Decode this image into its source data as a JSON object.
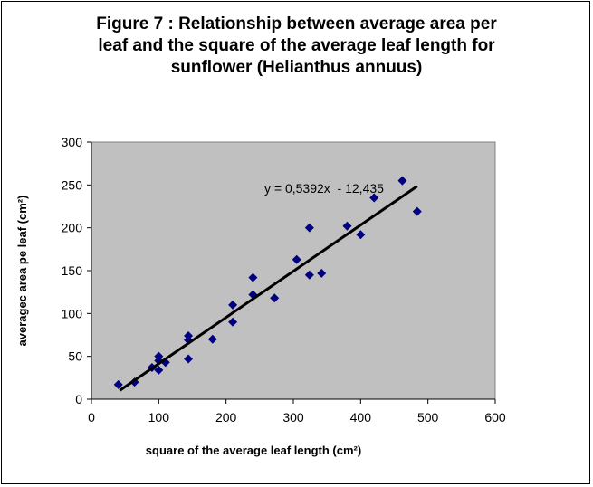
{
  "chart_data": {
    "type": "scatter",
    "title_lines": [
      "Figure 7 : Relationship between average area per",
      "leaf and the square of the average leaf length for",
      "sunflower (Helianthus annuus)"
    ],
    "xlabel": "square of the average leaf length (cm²)",
    "ylabel": "averagec area pe leaf (cm²)",
    "xlim": [
      0,
      600
    ],
    "ylim": [
      0,
      300
    ],
    "xticks": [
      0,
      100,
      200,
      300,
      400,
      500,
      600
    ],
    "yticks": [
      0,
      50,
      100,
      150,
      200,
      250,
      300
    ],
    "grid": false,
    "plot_background": "#c0c0c0",
    "marker_color": "#000080",
    "trendline_color": "#000000",
    "points": [
      [
        40,
        17
      ],
      [
        64,
        20
      ],
      [
        90,
        37
      ],
      [
        100,
        34
      ],
      [
        100,
        50
      ],
      [
        100,
        45
      ],
      [
        110,
        43
      ],
      [
        144,
        74
      ],
      [
        144,
        69
      ],
      [
        144,
        47
      ],
      [
        180,
        70
      ],
      [
        210,
        110
      ],
      [
        210,
        90
      ],
      [
        240,
        142
      ],
      [
        240,
        122
      ],
      [
        272,
        118
      ],
      [
        305,
        163
      ],
      [
        324,
        200
      ],
      [
        324,
        145
      ],
      [
        342,
        147
      ],
      [
        380,
        202
      ],
      [
        400,
        192
      ],
      [
        420,
        235
      ],
      [
        462,
        255
      ],
      [
        484,
        219
      ]
    ],
    "trendline": {
      "slope": 0.5392,
      "intercept": -12.435,
      "x_range": [
        42,
        484
      ],
      "equation_label": "y = 0,5392x  - 12,435"
    }
  }
}
